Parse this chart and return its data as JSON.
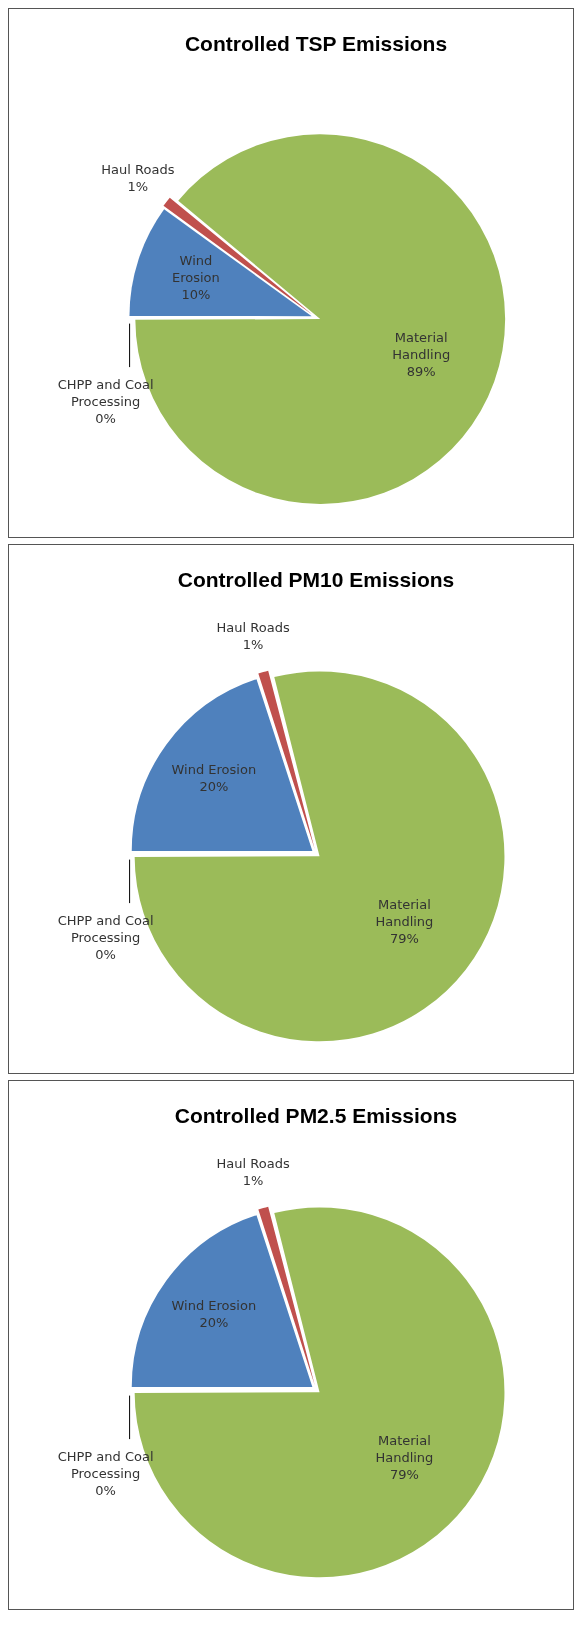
{
  "chart_data": [
    {
      "type": "pie",
      "title": "Controlled TSP Emissions",
      "categories": [
        "Material Handling",
        "CHPP and Coal Processing",
        "Wind Erosion",
        "Haul Roads"
      ],
      "values": [
        89,
        0,
        10,
        1
      ],
      "value_labels": [
        "89%",
        "0%",
        "10%",
        "1%"
      ],
      "colors": [
        "#9bbb59",
        "#d9d9d9",
        "#4f81bd",
        "#c0504d"
      ],
      "legend": false
    },
    {
      "type": "pie",
      "title": "Controlled PM10 Emissions",
      "categories": [
        "Material Handling",
        "CHPP and Coal Processing",
        "Wind Erosion",
        "Haul Roads"
      ],
      "values": [
        79,
        0,
        20,
        1
      ],
      "value_labels": [
        "79%",
        "0%",
        "20%",
        "1%"
      ],
      "colors": [
        "#9bbb59",
        "#d9d9d9",
        "#4f81bd",
        "#c0504d"
      ],
      "legend": false
    },
    {
      "type": "pie",
      "title": "Controlled PM2.5 Emissions",
      "categories": [
        "Material Handling",
        "CHPP and Coal Processing",
        "Wind Erosion",
        "Haul Roads"
      ],
      "values": [
        79,
        0,
        20,
        1
      ],
      "value_labels": [
        "79%",
        "0%",
        "20%",
        "1%"
      ],
      "colors": [
        "#9bbb59",
        "#d9d9d9",
        "#4f81bd",
        "#c0504d"
      ],
      "legend": false
    }
  ]
}
